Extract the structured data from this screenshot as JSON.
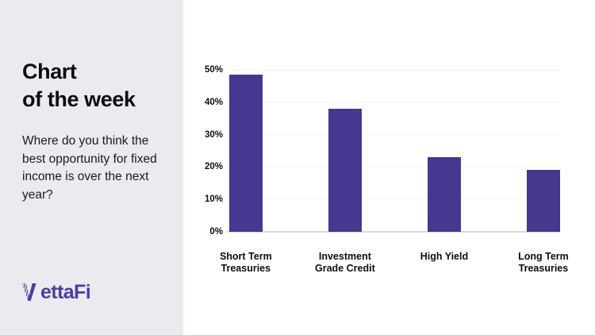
{
  "colors": {
    "sidebar_bg": "#ECEAEF",
    "bar": "#45388E",
    "logo_purple": "#4C3E9E",
    "text": "#0D0D0F",
    "gridline": "#F2F2F5",
    "baseline": "#D9D9DE"
  },
  "sidebar": {
    "title_line1": "Chart",
    "title_line2": "of the week",
    "question": "Where do you think the best opportunity for fixed income is over the next year?",
    "logo_text": "VettaFi"
  },
  "chart_data": {
    "type": "bar",
    "categories": [
      [
        "Short Term",
        "Treasuries"
      ],
      [
        "Investment",
        "Grade Credit"
      ],
      [
        "High Yield"
      ],
      [
        "Long Term",
        "Treasuries"
      ]
    ],
    "values": [
      48.5,
      38,
      23,
      19.2
    ],
    "title": "",
    "xlabel": "",
    "ylabel": "",
    "ylim": [
      0,
      50
    ],
    "yticks": [
      0,
      10,
      20,
      30,
      40,
      50
    ],
    "ytick_labels": [
      "0%",
      "10%",
      "20%",
      "30%",
      "40%",
      "50%"
    ],
    "grid": true,
    "legend": false,
    "bar_color": "#45388E"
  }
}
